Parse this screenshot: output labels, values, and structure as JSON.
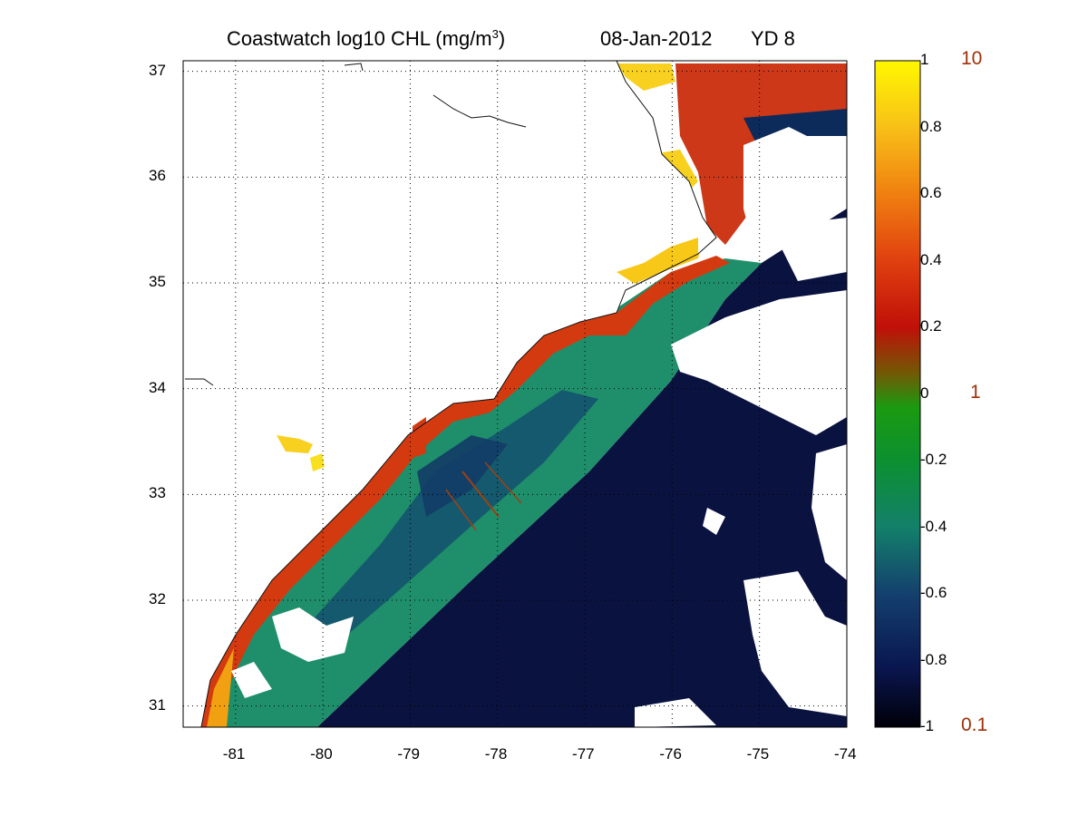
{
  "title": {
    "product": "Coastwatch  log10  CHL (mg/m",
    "superscript": "3",
    "close": ")",
    "date": "08-Jan-2012",
    "yearday": "YD 8"
  },
  "map": {
    "lon_ticks": [
      "-81",
      "-80",
      "-79",
      "-78",
      "-77",
      "-76",
      "-75",
      "-74"
    ],
    "lat_ticks": [
      "31",
      "32",
      "33",
      "34",
      "35",
      "36",
      "37"
    ],
    "extent": {
      "lon": [
        -81.6,
        -74.0
      ],
      "lat": [
        30.8,
        37.1
      ]
    },
    "grid": "dotted"
  },
  "colorbar": {
    "ticks": [
      "1",
      "0.8",
      "0.6",
      "0.4",
      "0.2",
      "0",
      "-0.2",
      "-0.4",
      "-0.6",
      "-0.8",
      "-1"
    ],
    "range": [
      -1,
      1
    ],
    "linear_labels": [
      "10",
      "1",
      "0.1"
    ],
    "colors": [
      "#000010",
      "#0a1a55",
      "#1a4a7a",
      "#1a8a6a",
      "#0a9a1a",
      "#5a6a0a",
      "#c01008",
      "#e04010",
      "#f07010",
      "#f8b010",
      "#f8e010",
      "#fff800"
    ]
  }
}
